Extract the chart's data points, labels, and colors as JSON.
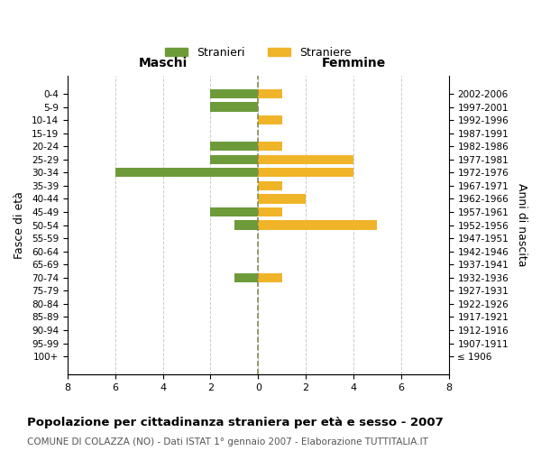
{
  "age_groups": [
    "100+",
    "95-99",
    "90-94",
    "85-89",
    "80-84",
    "75-79",
    "70-74",
    "65-69",
    "60-64",
    "55-59",
    "50-54",
    "45-49",
    "40-44",
    "35-39",
    "30-34",
    "25-29",
    "20-24",
    "15-19",
    "10-14",
    "5-9",
    "0-4"
  ],
  "birth_years": [
    "≤ 1906",
    "1907-1911",
    "1912-1916",
    "1917-1921",
    "1922-1926",
    "1927-1931",
    "1932-1936",
    "1937-1941",
    "1942-1946",
    "1947-1951",
    "1952-1956",
    "1957-1961",
    "1962-1966",
    "1967-1971",
    "1972-1976",
    "1977-1981",
    "1982-1986",
    "1987-1991",
    "1992-1996",
    "1997-2001",
    "2002-2006"
  ],
  "stranieri": [
    0,
    0,
    0,
    0,
    0,
    0,
    1,
    0,
    0,
    0,
    1,
    2,
    0,
    0,
    6,
    2,
    2,
    0,
    0,
    2,
    2
  ],
  "straniere": [
    0,
    0,
    0,
    0,
    0,
    0,
    1,
    0,
    0,
    0,
    5,
    1,
    2,
    1,
    4,
    4,
    1,
    0,
    1,
    0,
    1
  ],
  "color_stranieri": "#6d9b3a",
  "color_straniere": "#f0b429",
  "xlim": 8,
  "title": "Popolazione per cittadinanza straniera per età e sesso - 2007",
  "subtitle": "COMUNE DI COLAZZA (NO) - Dati ISTAT 1° gennaio 2007 - Elaborazione TUTTITALIA.IT",
  "ylabel_left": "Fasce di età",
  "ylabel_right": "Anni di nascita",
  "header_left": "Maschi",
  "header_right": "Femmine",
  "legend_stranieri": "Stranieri",
  "legend_straniere": "Straniere",
  "background_color": "#ffffff",
  "grid_color": "#cccccc",
  "bar_height": 0.7
}
